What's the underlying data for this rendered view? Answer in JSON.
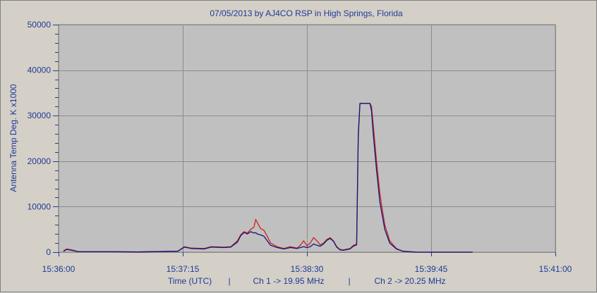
{
  "chart_data": {
    "type": "line",
    "title": "07/05/2013  by  AJ4CO RSP  in  High Springs, Florida",
    "ylabel": "Antenna Temp Deg. K x1000",
    "xlabel_parts": [
      "Time (UTC)",
      "|",
      "Ch 1 -> 19.95 MHz",
      "|",
      "Ch 2 -> 20.25 MHz"
    ],
    "x_ticks": [
      "15:36:00",
      "15:37:15",
      "15:38:30",
      "15:39:45",
      "15:41:00"
    ],
    "x_range_seconds": [
      0,
      300
    ],
    "ylim": [
      0,
      50000
    ],
    "y_ticks": [
      0,
      10000,
      20000,
      30000,
      40000,
      50000
    ],
    "y_tick_labels": [
      "0",
      "10000",
      "20000",
      "30000",
      "40000",
      "50000"
    ],
    "grid": true,
    "series": [
      {
        "name": "Ch 1 -> 19.95 MHz",
        "color": "#cc2222",
        "points": [
          [
            3,
            300
          ],
          [
            5,
            700
          ],
          [
            8,
            500
          ],
          [
            12,
            100
          ],
          [
            25,
            100
          ],
          [
            35,
            100
          ],
          [
            48,
            50
          ],
          [
            72,
            200
          ],
          [
            76,
            1200
          ],
          [
            80,
            900
          ],
          [
            88,
            800
          ],
          [
            92,
            1200
          ],
          [
            100,
            1100
          ],
          [
            104,
            1200
          ],
          [
            108,
            2500
          ],
          [
            110,
            3800
          ],
          [
            112,
            4500
          ],
          [
            114,
            4200
          ],
          [
            116,
            5000
          ],
          [
            118,
            5500
          ],
          [
            119,
            7200
          ],
          [
            120,
            6500
          ],
          [
            122,
            5200
          ],
          [
            124,
            4800
          ],
          [
            126,
            3500
          ],
          [
            128,
            2000
          ],
          [
            132,
            1200
          ],
          [
            136,
            800
          ],
          [
            140,
            1200
          ],
          [
            144,
            900
          ],
          [
            146,
            1500
          ],
          [
            148,
            2500
          ],
          [
            150,
            1400
          ],
          [
            152,
            2000
          ],
          [
            154,
            3200
          ],
          [
            156,
            2500
          ],
          [
            158,
            1600
          ],
          [
            160,
            2000
          ],
          [
            162,
            2800
          ],
          [
            164,
            3200
          ],
          [
            166,
            2500
          ],
          [
            168,
            1200
          ],
          [
            170,
            600
          ],
          [
            172,
            500
          ],
          [
            176,
            800
          ],
          [
            178,
            1500
          ],
          [
            180,
            1800
          ],
          [
            181,
            25000
          ],
          [
            182,
            32700
          ],
          [
            188,
            32700
          ],
          [
            189,
            32000
          ],
          [
            190,
            28000
          ],
          [
            192,
            20000
          ],
          [
            194,
            13000
          ],
          [
            195,
            10500
          ],
          [
            197,
            6000
          ],
          [
            200,
            2500
          ],
          [
            204,
            800
          ],
          [
            208,
            200
          ],
          [
            216,
            0
          ],
          [
            224,
            0
          ],
          [
            230,
            0
          ],
          [
            240,
            0
          ],
          [
            250,
            0
          ]
        ]
      },
      {
        "name": "Ch 2 -> 20.25 MHz",
        "color": "#15157a",
        "points": [
          [
            3,
            200
          ],
          [
            5,
            600
          ],
          [
            8,
            400
          ],
          [
            12,
            100
          ],
          [
            25,
            100
          ],
          [
            35,
            100
          ],
          [
            48,
            50
          ],
          [
            72,
            200
          ],
          [
            76,
            1100
          ],
          [
            80,
            800
          ],
          [
            88,
            700
          ],
          [
            92,
            1100
          ],
          [
            100,
            1000
          ],
          [
            104,
            1100
          ],
          [
            108,
            2200
          ],
          [
            110,
            3600
          ],
          [
            112,
            4300
          ],
          [
            114,
            4000
          ],
          [
            116,
            4500
          ],
          [
            118,
            4200
          ],
          [
            119,
            4300
          ],
          [
            120,
            4000
          ],
          [
            122,
            3800
          ],
          [
            124,
            3500
          ],
          [
            126,
            2500
          ],
          [
            128,
            1500
          ],
          [
            132,
            1000
          ],
          [
            136,
            700
          ],
          [
            140,
            1000
          ],
          [
            144,
            800
          ],
          [
            146,
            1000
          ],
          [
            148,
            1200
          ],
          [
            150,
            1000
          ],
          [
            152,
            1200
          ],
          [
            154,
            1800
          ],
          [
            156,
            1500
          ],
          [
            158,
            1300
          ],
          [
            160,
            1800
          ],
          [
            162,
            2600
          ],
          [
            164,
            3000
          ],
          [
            166,
            2400
          ],
          [
            168,
            1100
          ],
          [
            170,
            500
          ],
          [
            172,
            400
          ],
          [
            176,
            700
          ],
          [
            178,
            1300
          ],
          [
            180,
            1600
          ],
          [
            181,
            26000
          ],
          [
            182,
            32700
          ],
          [
            188,
            32700
          ],
          [
            189,
            31000
          ],
          [
            190,
            26000
          ],
          [
            192,
            18000
          ],
          [
            194,
            11000
          ],
          [
            195,
            9000
          ],
          [
            197,
            5000
          ],
          [
            200,
            2000
          ],
          [
            204,
            700
          ],
          [
            208,
            200
          ],
          [
            216,
            0
          ],
          [
            224,
            0
          ],
          [
            230,
            0
          ],
          [
            240,
            0
          ],
          [
            250,
            0
          ]
        ]
      }
    ]
  }
}
